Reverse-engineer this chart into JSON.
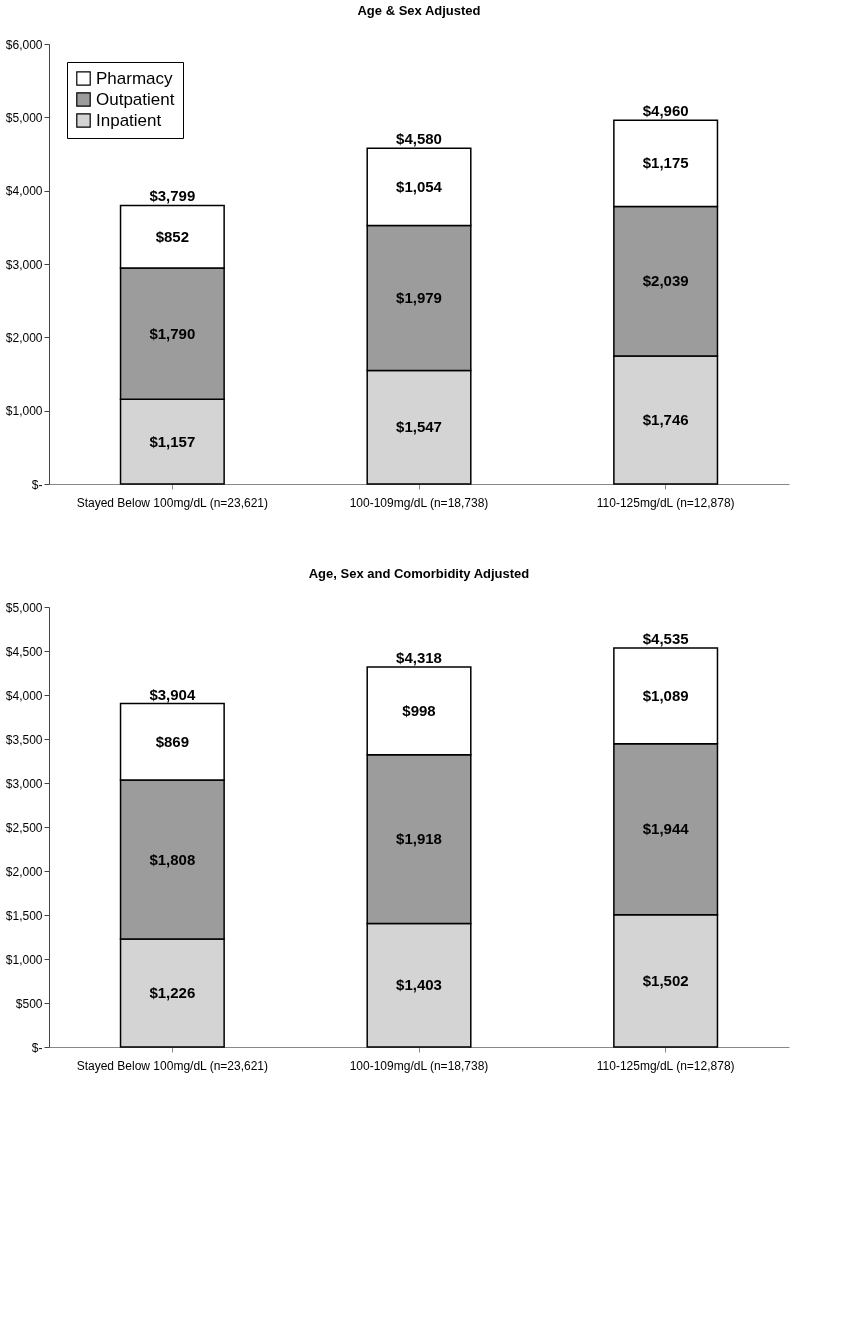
{
  "chart_data": [
    {
      "type": "bar",
      "title": "Age & Sex Adjusted",
      "stacked": true,
      "categories": [
        "Stayed Below 100mg/dL (n=23,621)",
        "100-109mg/dL (n=18,738)",
        "110-125mg/dL (n=12,878)"
      ],
      "series": [
        {
          "name": "Inpatient",
          "color": "#d4d4d4",
          "values": [
            1157,
            1547,
            1746
          ],
          "value_labels": [
            "$1,157",
            "$1,547",
            "$1,746"
          ]
        },
        {
          "name": "Outpatient",
          "color": "#9c9c9c",
          "values": [
            1790,
            1979,
            2039
          ],
          "value_labels": [
            "$1,790",
            "$1,979",
            "$2,039"
          ]
        },
        {
          "name": "Pharmacy",
          "color": "#ffffff",
          "values": [
            852,
            1054,
            1175
          ],
          "value_labels": [
            "$852",
            "$1,054",
            "$1,175"
          ]
        }
      ],
      "totals": [
        "$3,799",
        "$4,580",
        "$4,960"
      ],
      "ylim": [
        0,
        6000
      ],
      "yticks": [
        {
          "value": 0,
          "label": "$-"
        },
        {
          "value": 1000,
          "label": "$1,000"
        },
        {
          "value": 2000,
          "label": "$2,000"
        },
        {
          "value": 3000,
          "label": "$3,000"
        },
        {
          "value": 4000,
          "label": "$4,000"
        },
        {
          "value": 5000,
          "label": "$5,000"
        },
        {
          "value": 6000,
          "label": "$6,000"
        }
      ],
      "grid": false,
      "legend": "top left"
    },
    {
      "type": "bar",
      "title": "Age, Sex and Comorbidity Adjusted",
      "stacked": true,
      "categories": [
        "Stayed Below  100mg/dL (n=23,621)",
        "100-109mg/dL (n=18,738)",
        "110-125mg/dL (n=12,878)"
      ],
      "series": [
        {
          "color": "#d4d4d4",
          "values": [
            1226,
            1403,
            1502
          ],
          "value_labels": [
            "$1,226",
            "$1,403",
            "$1,502"
          ]
        },
        {
          "color": "#9c9c9c",
          "values": [
            1808,
            1918,
            1944
          ],
          "value_labels": [
            "$1,808",
            "$1,918",
            "$1,944"
          ]
        },
        {
          "color": "#ffffff",
          "values": [
            869,
            998,
            1089
          ],
          "value_labels": [
            "$869",
            "$998",
            "$1,089"
          ]
        }
      ],
      "totals": [
        "$3,904",
        "$4,318",
        "$4,535"
      ],
      "ylim": [
        0,
        5000
      ],
      "yticks": [
        {
          "value": 0,
          "label": "$-"
        },
        {
          "value": 500,
          "label": "$500"
        },
        {
          "value": 1000,
          "label": "$1,000"
        },
        {
          "value": 1500,
          "label": "$1,500"
        },
        {
          "value": 2000,
          "label": "$2,000"
        },
        {
          "value": 2500,
          "label": "$2,500"
        },
        {
          "value": 3000,
          "label": "$3,000"
        },
        {
          "value": 3500,
          "label": "$3,500"
        },
        {
          "value": 4000,
          "label": "$4,000"
        },
        {
          "value": 4500,
          "label": "$4,500"
        },
        {
          "value": 5000,
          "label": "$5,000"
        }
      ],
      "grid": false,
      "legend": false
    }
  ]
}
